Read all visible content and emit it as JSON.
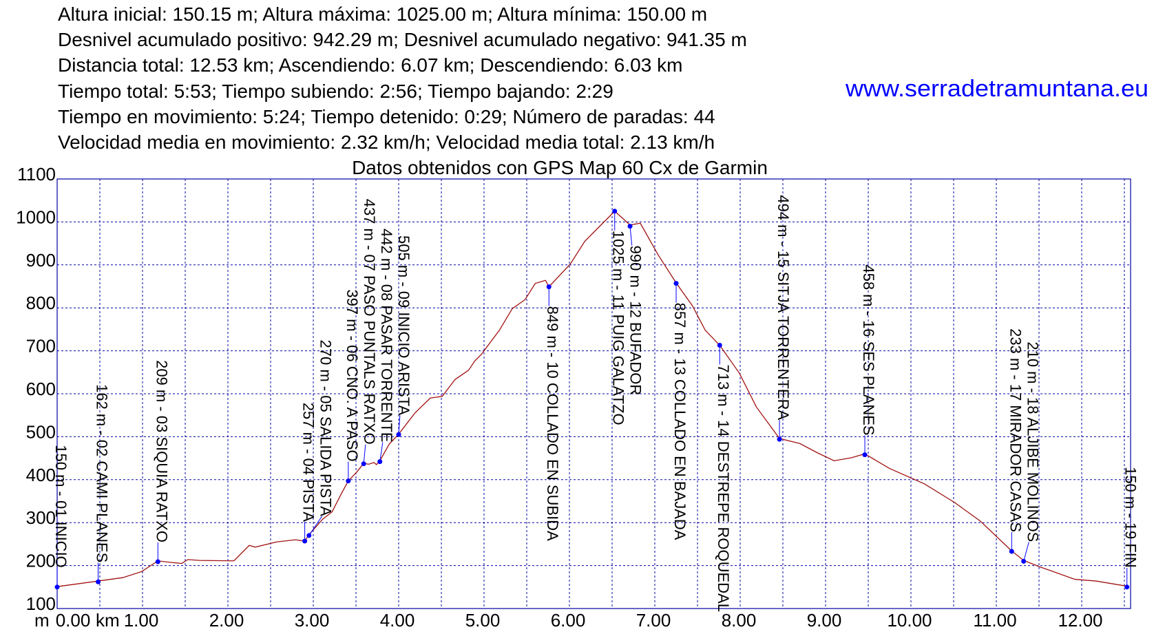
{
  "stats": [
    "Altura inicial: 150.15 m; Altura máxima: 1025.00 m; Altura mínima: 150.00 m",
    "Desnivel acumulado positivo: 942.29 m; Desnivel acumulado negativo: 941.35 m",
    "Distancia total: 12.53 km; Ascendiendo: 6.07 km; Descendiendo: 6.03 km",
    "Tiempo total: 5:53; Tiempo subiendo: 2:56; Tiempo bajando: 2:29",
    "Tiempo en movimiento: 5:24; Tiempo detenido: 0:29; Número de paradas: 44",
    "Velocidad media en movimiento: 2.32 km/h; Velocidad media total: 2.13 km/h"
  ],
  "watermark": "www.serradetramuntana.eu",
  "chart_data": {
    "type": "line",
    "title": "Datos obtenidos con GPS Map 60 Cx de Garmin",
    "xlabel": "km",
    "ylabel": "m",
    "xlim": [
      0,
      12.55
    ],
    "ylim": [
      100,
      1100
    ],
    "grid": true,
    "x_ticks": [
      "0.00",
      "1.00",
      "2.00",
      "3.00",
      "4.00",
      "5.00",
      "6.00",
      "7.00",
      "8.00",
      "9.00",
      "10.00",
      "11.00",
      "12.00"
    ],
    "y_ticks": [
      "100",
      "200",
      "300",
      "400",
      "500",
      "600",
      "700",
      "800",
      "900",
      "1000",
      "1100"
    ],
    "colors": {
      "profile": "#a01010",
      "waypoint": "#0000ff",
      "grid": "#0000a0",
      "frame": "#0000a0",
      "watermark": "#0000ff"
    },
    "profile": {
      "x": [
        0,
        0.48,
        0.77,
        0.99,
        1.18,
        1.35,
        1.46,
        1.53,
        1.67,
        2.07,
        2.25,
        2.32,
        2.57,
        2.79,
        2.9,
        2.95,
        3.11,
        3.22,
        3.33,
        3.41,
        3.51,
        3.59,
        3.65,
        3.71,
        3.74,
        3.78,
        3.89,
        4.0,
        4.19,
        4.37,
        4.51,
        4.66,
        4.82,
        4.89,
        4.97,
        5.18,
        5.33,
        5.48,
        5.6,
        5.72,
        5.76,
        6.01,
        6.18,
        6.38,
        6.53,
        6.71,
        6.83,
        7.04,
        7.25,
        7.44,
        7.59,
        7.76,
        7.99,
        8.19,
        8.46,
        8.7,
        8.9,
        9.1,
        9.3,
        9.46,
        9.75,
        10.16,
        10.51,
        10.81,
        11.18,
        11.32,
        11.51,
        11.92,
        12.17,
        12.53
      ],
      "y": [
        151,
        164,
        172,
        186,
        211,
        207,
        205,
        214,
        212,
        211,
        247,
        243,
        255,
        260,
        257,
        272,
        308,
        325,
        368,
        397,
        418,
        438,
        436,
        440,
        435,
        444,
        483,
        506,
        555,
        590,
        594,
        633,
        655,
        676,
        692,
        748,
        798,
        819,
        857,
        864,
        849,
        902,
        955,
        995,
        1025,
        993,
        997,
        923,
        858,
        805,
        748,
        713,
        648,
        569,
        496,
        484,
        463,
        444,
        451,
        460,
        426,
        390,
        347,
        304,
        234,
        212,
        197,
        168,
        164,
        152
      ]
    },
    "waypoints": [
      {
        "label": "150 m - 01 INICIO",
        "x": 0.0,
        "y": 150,
        "placement": "above"
      },
      {
        "label": "162 m - 02 CAMI PLANES",
        "x": 0.48,
        "y": 162,
        "placement": "above"
      },
      {
        "label": "209 m - 03 SIQUIA RATXO",
        "x": 1.18,
        "y": 209,
        "placement": "above"
      },
      {
        "label": "257 m - 04 PISTA",
        "x": 2.9,
        "y": 257,
        "placement": "above"
      },
      {
        "label": "270 m - 05 SALIDA PISTA",
        "x": 2.95,
        "y": 270,
        "placement": "above"
      },
      {
        "label": "397 m - 06 CNO. A PASO",
        "x": 3.41,
        "y": 397,
        "placement": "above"
      },
      {
        "label": "437 m - 07 PASO PUNTALS RATXO",
        "x": 3.59,
        "y": 437,
        "placement": "above"
      },
      {
        "label": "442 m - 08 PASAR TORRENTE",
        "x": 3.78,
        "y": 442,
        "placement": "above"
      },
      {
        "label": "505 m - 09 INICIO ARISTA",
        "x": 4.0,
        "y": 505,
        "placement": "above"
      },
      {
        "label": "849 m - 10 COLLADO EN SUBIDA",
        "x": 5.76,
        "y": 849,
        "placement": "below"
      },
      {
        "label": "1025 m - 11 PUIG GALATZO",
        "x": 6.53,
        "y": 1025,
        "placement": "below"
      },
      {
        "label": "990 m - 12 BUFADOR",
        "x": 6.71,
        "y": 990,
        "placement": "below"
      },
      {
        "label": "857 m - 13 COLLADO EN BAJADA",
        "x": 7.25,
        "y": 857,
        "placement": "below"
      },
      {
        "label": "713 m - 14 DESTREPE ROQUEDAL",
        "x": 7.76,
        "y": 713,
        "placement": "below"
      },
      {
        "label": "494 m - 15 SITJA TORRENTERA",
        "x": 8.46,
        "y": 494,
        "placement": "above"
      },
      {
        "label": "458 m - 16 SES PLANES",
        "x": 9.46,
        "y": 458,
        "placement": "above"
      },
      {
        "label": "233 m - 17 MIRADOR CASAS",
        "x": 11.18,
        "y": 233,
        "placement": "above"
      },
      {
        "label": "210 m - 18 ALJIBE MOLINOS",
        "x": 11.32,
        "y": 210,
        "placement": "above"
      },
      {
        "label": "150 m - 19 FIN",
        "x": 12.53,
        "y": 150,
        "placement": "above"
      }
    ]
  }
}
